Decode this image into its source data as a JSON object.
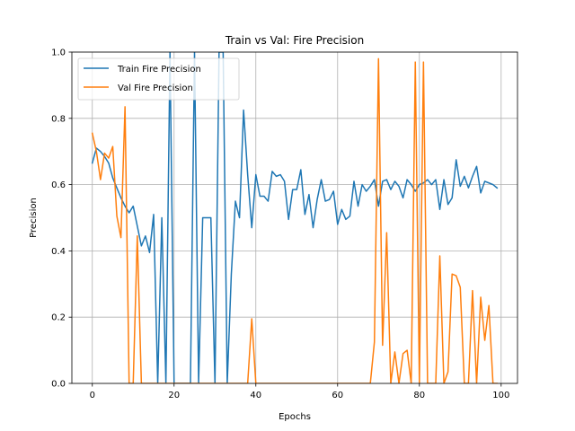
{
  "chart_data": {
    "type": "line",
    "title": "Train vs Val: Fire Precision",
    "xlabel": "Epochs",
    "ylabel": "Precision",
    "xlim": [
      -5,
      104
    ],
    "ylim": [
      0,
      1
    ],
    "xticks": [
      0,
      20,
      40,
      60,
      80,
      100
    ],
    "yticks": [
      0.0,
      0.2,
      0.4,
      0.6,
      0.8,
      1.0
    ],
    "xtick_labels": [
      "0",
      "20",
      "40",
      "60",
      "80",
      "100"
    ],
    "ytick_labels": [
      "0.0",
      "0.2",
      "0.4",
      "0.6",
      "0.8",
      "1.0"
    ],
    "grid": true,
    "legend_position": "upper-left",
    "x": [
      0,
      1,
      2,
      3,
      4,
      5,
      6,
      7,
      8,
      9,
      10,
      11,
      12,
      13,
      14,
      15,
      16,
      17,
      18,
      19,
      20,
      21,
      22,
      23,
      24,
      25,
      26,
      27,
      28,
      29,
      30,
      31,
      32,
      33,
      34,
      35,
      36,
      37,
      38,
      39,
      40,
      41,
      42,
      43,
      44,
      45,
      46,
      47,
      48,
      49,
      50,
      51,
      52,
      53,
      54,
      55,
      56,
      57,
      58,
      59,
      60,
      61,
      62,
      63,
      64,
      65,
      66,
      67,
      68,
      69,
      70,
      71,
      72,
      73,
      74,
      75,
      76,
      77,
      78,
      79,
      80,
      81,
      82,
      83,
      84,
      85,
      86,
      87,
      88,
      89,
      90,
      91,
      92,
      93,
      94,
      95,
      96,
      97,
      98,
      99
    ],
    "series": [
      {
        "name": "Train Fire Precision",
        "color": "#1f77b4",
        "values": [
          0.665,
          0.71,
          0.7,
          0.685,
          0.665,
          0.62,
          0.59,
          0.56,
          0.535,
          0.515,
          0.535,
          0.475,
          0.415,
          0.445,
          0.395,
          0.51,
          0.0,
          0.5,
          0.0,
          1.0,
          0.0,
          0.0,
          0.0,
          0.0,
          0.0,
          1.0,
          0.0,
          0.5,
          0.5,
          0.5,
          0.0,
          1.0,
          1.0,
          0.0,
          0.33,
          0.55,
          0.5,
          0.825,
          0.63,
          0.47,
          0.63,
          0.565,
          0.565,
          0.55,
          0.64,
          0.625,
          0.63,
          0.61,
          0.495,
          0.585,
          0.585,
          0.645,
          0.51,
          0.57,
          0.47,
          0.555,
          0.615,
          0.55,
          0.555,
          0.58,
          0.48,
          0.525,
          0.495,
          0.505,
          0.61,
          0.535,
          0.6,
          0.58,
          0.595,
          0.615,
          0.535,
          0.61,
          0.615,
          0.585,
          0.61,
          0.595,
          0.56,
          0.615,
          0.6,
          0.58,
          0.6,
          0.605,
          0.615,
          0.6,
          0.615,
          0.525,
          0.615,
          0.54,
          0.56,
          0.675,
          0.595,
          0.625,
          0.59,
          0.625,
          0.655,
          0.575,
          0.61,
          0.605,
          0.6,
          0.59
        ]
      },
      {
        "name": "Val Fire Precision",
        "color": "#ff7f0e",
        "values": [
          0.755,
          0.7,
          0.615,
          0.695,
          0.68,
          0.715,
          0.505,
          0.44,
          0.835,
          0.0,
          0.0,
          0.445,
          0.0,
          0.0,
          0.0,
          0.0,
          0.0,
          0.0,
          0.0,
          0.0,
          0.0,
          0.0,
          0.0,
          0.0,
          0.0,
          0.0,
          0.0,
          0.0,
          0.0,
          0.0,
          0.0,
          0.0,
          0.0,
          0.0,
          0.0,
          0.0,
          0.0,
          0.0,
          0.0,
          0.195,
          0.0,
          0.0,
          0.0,
          0.0,
          0.0,
          0.0,
          0.0,
          0.0,
          0.0,
          0.0,
          0.0,
          0.0,
          0.0,
          0.0,
          0.0,
          0.0,
          0.0,
          0.0,
          0.0,
          0.0,
          0.0,
          0.0,
          0.0,
          0.0,
          0.0,
          0.0,
          0.0,
          0.0,
          0.0,
          0.125,
          0.98,
          0.115,
          0.455,
          0.0,
          0.095,
          0.0,
          0.09,
          0.1,
          0.0,
          0.97,
          0.0,
          0.97,
          0.0,
          0.0,
          0.0,
          0.385,
          0.0,
          0.035,
          0.33,
          0.325,
          0.29,
          0.0,
          0.0,
          0.28,
          0.0,
          0.26,
          0.13,
          0.235,
          0.0,
          0.0
        ]
      }
    ]
  }
}
